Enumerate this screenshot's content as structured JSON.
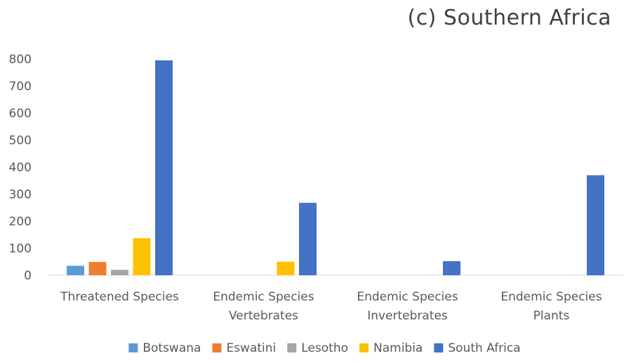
{
  "chart_data": {
    "type": "bar",
    "title": "(c) Southern Africa",
    "categories": [
      [
        "Threatened Species"
      ],
      [
        "Endemic Species",
        "Vertebrates"
      ],
      [
        "Endemic Species",
        "Invertebrates"
      ],
      [
        "Endemic Species",
        "Plants"
      ]
    ],
    "series": [
      {
        "name": "Botswana",
        "color": "#5B9BD5",
        "values": [
          35,
          0,
          0,
          0
        ]
      },
      {
        "name": "Eswatini",
        "color": "#ED7D31",
        "values": [
          49,
          0,
          0,
          0
        ]
      },
      {
        "name": "Lesotho",
        "color": "#A5A5A5",
        "values": [
          20,
          0,
          0,
          0
        ]
      },
      {
        "name": "Namibia",
        "color": "#FFC000",
        "values": [
          137,
          50,
          0,
          0
        ]
      },
      {
        "name": "South Africa",
        "color": "#4472C4",
        "values": [
          795,
          268,
          52,
          370
        ]
      }
    ],
    "yticks": [
      "800",
      "700",
      "600",
      "500",
      "400",
      "300",
      "200",
      "100",
      "0"
    ],
    "ylim": [
      0,
      800
    ],
    "xlabel": "",
    "ylabel": "",
    "grid": false,
    "legend": "bottom"
  }
}
